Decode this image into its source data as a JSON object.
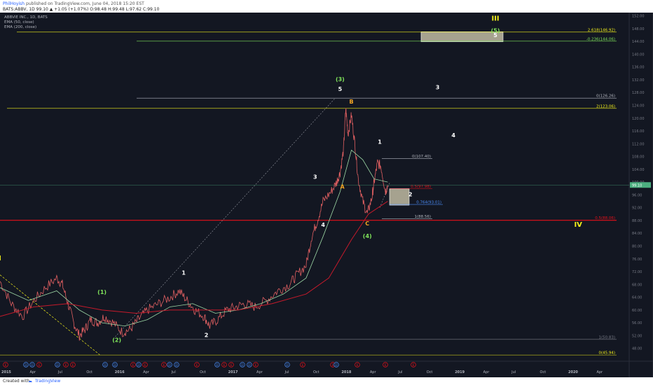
{
  "header": {
    "author": "PhilHoyish",
    "published_text": "published on TradingView.com, June 04, 2018 15:20 EST",
    "ohlc_line": "BATS:ABBV, 1D 99.10 ▲ +1.05 (+1.07%) O:98.48 H:99.48 L:97.62 C:99.10"
  },
  "legend": {
    "symbol": "ABBVIE INC., 1D, BATS",
    "ema50": "EMA (50, close)",
    "ema200": "EMA (200, close)"
  },
  "footer": {
    "created_with": "Created with",
    "brand": "TradingView"
  },
  "colors": {
    "background": "#131722",
    "price": "#e05f61",
    "ema50": "#9ed9a6",
    "ema200": "#c61a2b",
    "wave_green": "#7fe35a",
    "wave_yellow": "#f3f01a",
    "wave_orange": "#f5a623",
    "fib_red": "#e8101a",
    "fib_blue": "#4b8df8",
    "price_tag": "#4caf80"
  },
  "chart_data": {
    "type": "line",
    "title": "",
    "ylim": [
      44,
      153
    ],
    "x_ticks": [
      "2015",
      "Apr",
      "Jul",
      "Oct",
      "2016",
      "Apr",
      "Jul",
      "Oct",
      "2017",
      "Apr",
      "Jul",
      "Oct",
      "2018",
      "Apr",
      "Jul",
      "Oct",
      "2019",
      "Apr",
      "Jul",
      "Oct",
      "2020",
      "Apr"
    ],
    "y_ticks": [
      48,
      52,
      56,
      60,
      64,
      68,
      72,
      76,
      80,
      84,
      88,
      92,
      96,
      100,
      104,
      108,
      112,
      116,
      120,
      124,
      128,
      132,
      136,
      140,
      144,
      148,
      152
    ],
    "current_price": 99.1,
    "current_price_label": "99.10",
    "series": [
      {
        "name": "ABBV",
        "t": [
          2015.0,
          2015.1,
          2015.2,
          2015.3,
          2015.4,
          2015.5,
          2015.55,
          2015.6,
          2015.65,
          2015.7,
          2015.75,
          2015.8,
          2015.86,
          2015.92,
          2016.0,
          2016.08,
          2016.15,
          2016.22,
          2016.3,
          2016.4,
          2016.5,
          2016.58,
          2016.65,
          2016.72,
          2016.8,
          2016.85,
          2016.92,
          2017.0,
          2017.08,
          2017.16,
          2017.25,
          2017.35,
          2017.45,
          2017.55,
          2017.62,
          2017.7,
          2017.75,
          2017.8,
          2017.85,
          2017.92,
          2017.97,
          2018.0,
          2018.03,
          2018.05,
          2018.07,
          2018.1,
          2018.13,
          2018.16,
          2018.2,
          2018.24,
          2018.28,
          2018.3,
          2018.33,
          2018.36,
          2018.4,
          2018.42
        ],
        "values": [
          69,
          62,
          58,
          63,
          67,
          70,
          68,
          62,
          56,
          52,
          54,
          57,
          56,
          58,
          56,
          53,
          54,
          57,
          60,
          62,
          64,
          66,
          63,
          60,
          58,
          55,
          57,
          60,
          61,
          62,
          61,
          63,
          66,
          68,
          71,
          74,
          83,
          88,
          94,
          97,
          100,
          103,
          110,
          123,
          115,
          121,
          112,
          101,
          94,
          90,
          95,
          100,
          106,
          105,
          97,
          99.1
        ]
      },
      {
        "name": "EMA (50, close)",
        "t": [
          2015.0,
          2015.25,
          2015.5,
          2015.7,
          2015.9,
          2016.1,
          2016.3,
          2016.5,
          2016.7,
          2016.9,
          2017.1,
          2017.3,
          2017.5,
          2017.7,
          2017.85,
          2018.0,
          2018.1,
          2018.2,
          2018.3,
          2018.42
        ],
        "values": [
          67,
          63,
          66,
          60,
          56,
          55,
          57,
          61,
          62,
          59,
          60,
          62,
          65,
          70,
          83,
          97,
          110,
          107,
          101,
          100
        ]
      },
      {
        "name": "EMA (200, close)",
        "t": [
          2015.0,
          2015.3,
          2015.6,
          2015.9,
          2016.2,
          2016.5,
          2016.8,
          2017.1,
          2017.4,
          2017.7,
          2017.9,
          2018.1,
          2018.25,
          2018.42
        ],
        "values": [
          58,
          61,
          62,
          60,
          59,
          60,
          60,
          60,
          62,
          65,
          70,
          82,
          90,
          94
        ]
      }
    ],
    "fib_levels": [
      {
        "label": "2.618(146.92)",
        "value": 146.92,
        "color": "#f3f01a"
      },
      {
        "label": "-0.236(144.06)",
        "value": 144.06,
        "color": "#7fe35a"
      },
      {
        "label": "0(126.26)",
        "value": 126.26,
        "color": "#b2b5be"
      },
      {
        "label": "2(123.06)",
        "value": 123.06,
        "color": "#f3f01a"
      },
      {
        "label": "0(107.40)",
        "value": 107.4,
        "color": "#b2b5be"
      },
      {
        "label": "0.5(97.98)",
        "value": 97.98,
        "color": "#e8101a"
      },
      {
        "label": "0.764(93.01)",
        "value": 93.01,
        "color": "#4b8df8"
      },
      {
        "label": "1(88.56)",
        "value": 88.56,
        "color": "#b2b5be"
      },
      {
        "label": "0.5(88.06)",
        "value": 88.06,
        "color": "#e8101a"
      },
      {
        "label": "1(50.83)",
        "value": 50.83,
        "color": "#787b86"
      },
      {
        "label": "0(45.94)",
        "value": 45.94,
        "color": "#f3f01a"
      }
    ],
    "wave_labels": [
      {
        "text": "I",
        "t": 2015.0,
        "v": 75.5,
        "color": "#f3f01a"
      },
      {
        "text": "(1)",
        "t": 2015.9,
        "v": 65,
        "color": "#7fe35a"
      },
      {
        "text": "(2)",
        "t": 2016.03,
        "v": 50,
        "color": "#7fe35a"
      },
      {
        "text": "1",
        "t": 2016.62,
        "v": 71,
        "color": "#ffffff"
      },
      {
        "text": "2",
        "t": 2016.82,
        "v": 51.5,
        "color": "#ffffff"
      },
      {
        "text": "3",
        "t": 2017.78,
        "v": 101,
        "color": "#ffffff"
      },
      {
        "text": "4",
        "t": 2017.85,
        "v": 86,
        "color": "#ffffff"
      },
      {
        "text": "(3)",
        "t": 2018.0,
        "v": 131.5,
        "color": "#7fe35a"
      },
      {
        "text": "5",
        "t": 2018.0,
        "v": 128.5,
        "color": "#ffffff"
      },
      {
        "text": "B",
        "t": 2018.1,
        "v": 124.5,
        "color": "#f5a623"
      },
      {
        "text": "A",
        "t": 2018.02,
        "v": 98,
        "color": "#f5a623"
      },
      {
        "text": "C",
        "t": 2018.24,
        "v": 86.5,
        "color": "#f5a623"
      },
      {
        "text": "(4)",
        "t": 2018.24,
        "v": 82.5,
        "color": "#7fe35a"
      },
      {
        "text": "1",
        "t": 2018.35,
        "v": 112,
        "color": "#ffffff"
      },
      {
        "text": "2",
        "t": 2018.62,
        "v": 95.5,
        "color": "#ffffff"
      },
      {
        "text": "3",
        "t": 2018.86,
        "v": 129,
        "color": "#ffffff"
      },
      {
        "text": "4",
        "t": 2019.0,
        "v": 114,
        "color": "#ffffff"
      },
      {
        "text": "III",
        "t": 2019.37,
        "v": 150.5,
        "color": "#f3f01a"
      },
      {
        "text": "(5)",
        "t": 2019.37,
        "v": 146.8,
        "color": "#7fe35a"
      },
      {
        "text": "5",
        "t": 2019.37,
        "v": 145.3,
        "color": "#ffffff"
      },
      {
        "text": "IV",
        "t": 2020.1,
        "v": 86,
        "color": "#f3f01a"
      }
    ],
    "event_markers": [
      "E",
      "D",
      "D",
      "E",
      "D",
      "E",
      "E",
      "D",
      "D",
      "E",
      "D",
      "E",
      "E",
      "D",
      "D",
      "E",
      "D",
      "E",
      "E",
      "D",
      "D",
      "E",
      "D",
      "E",
      "E",
      "D",
      "E",
      "E",
      "E"
    ]
  }
}
